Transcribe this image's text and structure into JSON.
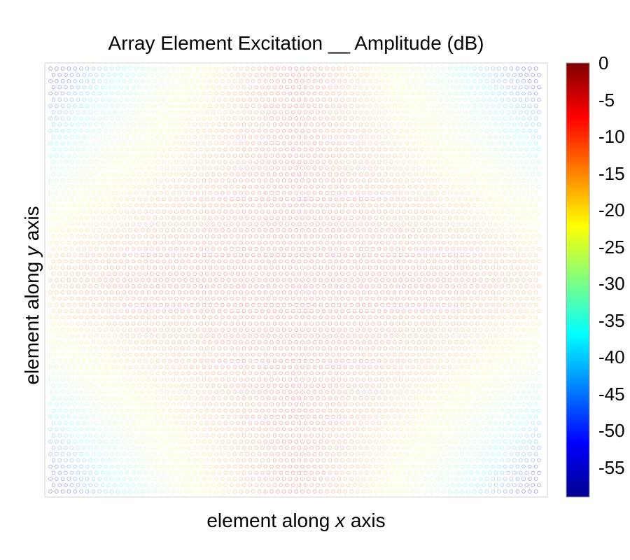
{
  "chart_data": {
    "type": "scatter",
    "title": "Array Element Excitation __ Amplitude (dB)",
    "xlabel": {
      "pre": "element along ",
      "var": "x",
      "post": " axis"
    },
    "ylabel": {
      "pre": "element along ",
      "var": "y",
      "post": " axis"
    },
    "marker": "open-circle",
    "grid": false,
    "axis_ticks": false,
    "lattice": "hexagonal",
    "rows": 69,
    "columns_per_row": 80,
    "amplitude_center_db": -8,
    "amplitude_corner_db": -50,
    "colorbar": {
      "colormap": "jet",
      "range": [
        -59,
        0
      ],
      "tick_values": [
        0,
        -5,
        -10,
        -15,
        -20,
        -25,
        -30,
        -35,
        -40,
        -45,
        -50,
        -55
      ],
      "tick_labels": [
        "0",
        "-5",
        "-10",
        "-15",
        "-20",
        "-25",
        "-30",
        "-35",
        "-40",
        "-45",
        "-50",
        "-55"
      ]
    }
  }
}
